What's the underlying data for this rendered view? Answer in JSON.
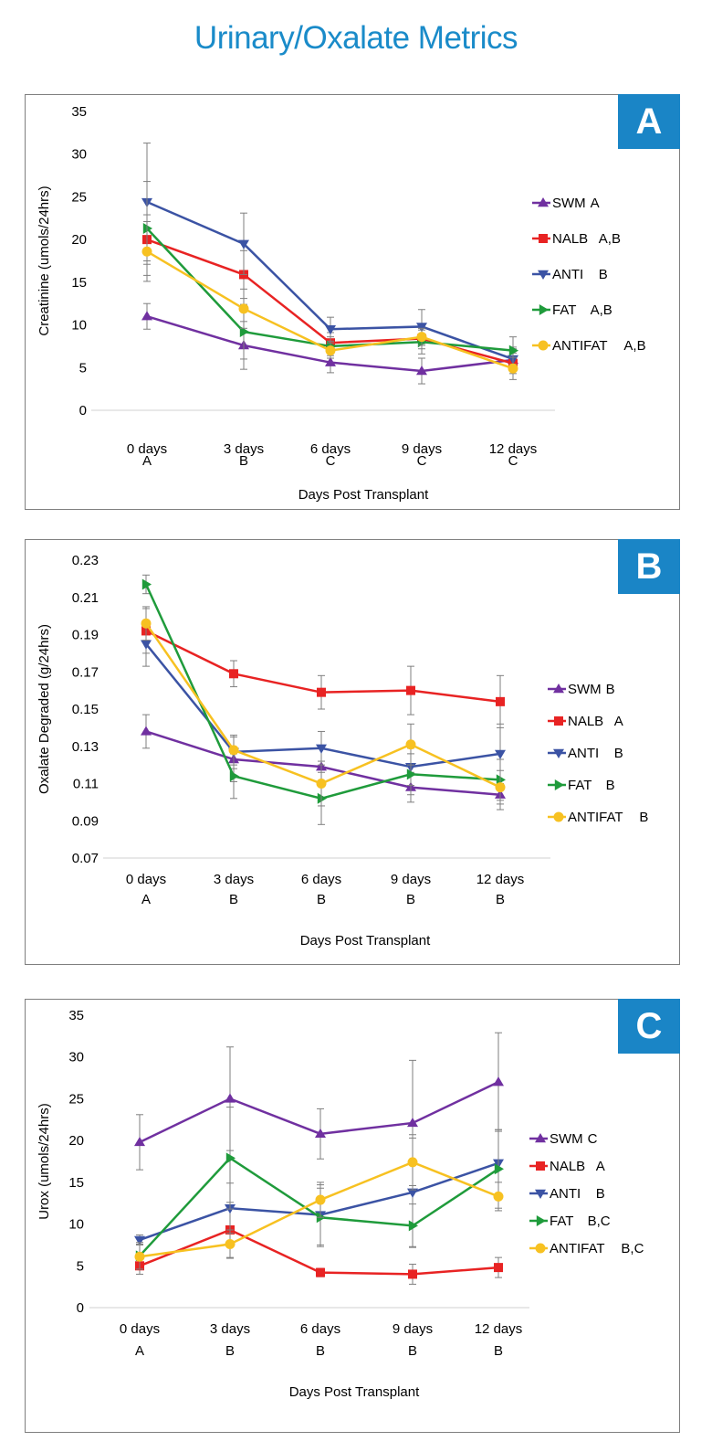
{
  "page": {
    "title": "Urinary/Oxalate Metrics"
  },
  "colors": {
    "title": "#1a8bc9",
    "badge": "#1a85c6",
    "SWM": "#7030a0",
    "NALB": "#e82323",
    "ANTI": "#3b53a4",
    "FAT": "#1f9b3b",
    "ANTIFAT": "#f7c121",
    "errorbar": "#7f7f7f"
  },
  "chart_data": [
    {
      "panel": "A",
      "type": "line",
      "categories": [
        "0 days",
        "3 days",
        "6 days",
        "9 days",
        "12 days"
      ],
      "category_groups": [
        "A",
        "B",
        "C",
        "C",
        "C"
      ],
      "xlabel": "Days Post Transplant",
      "ylabel": "Creatinine (umols/24hrs)",
      "ylim": [
        0,
        35
      ],
      "yticks": [
        "0",
        "5",
        "10",
        "15",
        "20",
        "25",
        "30",
        "35"
      ],
      "grid": false,
      "legend_position": "right",
      "series": [
        {
          "name": "SWM",
          "group": "A",
          "marker": "triangle-up",
          "values": [
            11,
            7.6,
            5.6,
            4.6,
            5.9
          ],
          "errors": [
            1.5,
            2.8,
            1.2,
            1.5,
            1.3
          ]
        },
        {
          "name": "NALB",
          "group": "A,B",
          "marker": "square",
          "values": [
            20,
            15.9,
            7.9,
            8.4,
            5.5
          ],
          "errors": [
            2.9,
            2.8,
            1.2,
            1.2,
            1.2
          ]
        },
        {
          "name": "ANTI",
          "group": "B",
          "marker": "triangle-down",
          "values": [
            24.4,
            19.5,
            9.5,
            9.8,
            6.0
          ],
          "errors": [
            6.9,
            3.6,
            1.4,
            2.0,
            1.4
          ]
        },
        {
          "name": "FAT",
          "group": "A,B",
          "marker": "triangle-right",
          "values": [
            21.3,
            9.2,
            7.5,
            8.0,
            7.0
          ],
          "errors": [
            5.5,
            3.2,
            1.1,
            1.4,
            1.6
          ]
        },
        {
          "name": "ANTIFAT",
          "group": "A,B",
          "marker": "circle",
          "values": [
            18.6,
            11.9,
            7.0,
            8.6,
            4.9
          ],
          "errors": [
            3.5,
            2.3,
            0.9,
            1.0,
            1.3
          ]
        }
      ]
    },
    {
      "panel": "B",
      "type": "line",
      "categories": [
        "0 days",
        "3 days",
        "6 days",
        "9 days",
        "12 days"
      ],
      "category_groups": [
        "A",
        "B",
        "B",
        "B",
        "B"
      ],
      "xlabel": "Days Post Transplant",
      "ylabel": "Oxalate Degraded (g/24hrs)",
      "ylim": [
        0.07,
        0.23
      ],
      "yticks": [
        "0.07",
        "0.09",
        "0.11",
        "0.13",
        "0.15",
        "0.17",
        "0.19",
        "0.21",
        "0.23"
      ],
      "grid": false,
      "legend_position": "right",
      "series": [
        {
          "name": "SWM",
          "group": "B",
          "marker": "triangle-up",
          "values": [
            0.138,
            0.123,
            0.119,
            0.108,
            0.104
          ],
          "errors": [
            0.009,
            0.012,
            0.01,
            0.008,
            0.008
          ]
        },
        {
          "name": "NALB",
          "group": "A",
          "marker": "square",
          "values": [
            0.192,
            0.169,
            0.159,
            0.16,
            0.154
          ],
          "errors": [
            0.012,
            0.007,
            0.009,
            0.013,
            0.014
          ]
        },
        {
          "name": "ANTI",
          "group": "B",
          "marker": "triangle-down",
          "values": [
            0.185,
            0.127,
            0.129,
            0.119,
            0.126
          ],
          "errors": [
            0.012,
            0.009,
            0.009,
            0.01,
            0.016
          ]
        },
        {
          "name": "FAT",
          "group": "B",
          "marker": "triangle-right",
          "values": [
            0.217,
            0.114,
            0.102,
            0.115,
            0.112
          ],
          "errors": [
            0.005,
            0.012,
            0.014,
            0.011,
            0.011
          ]
        },
        {
          "name": "ANTIFAT",
          "group": "B",
          "marker": "circle",
          "values": [
            0.196,
            0.128,
            0.11,
            0.131,
            0.108
          ],
          "errors": [
            0.009,
            0.008,
            0.012,
            0.011,
            0.009
          ]
        }
      ]
    },
    {
      "panel": "C",
      "type": "line",
      "categories": [
        "0 days",
        "3 days",
        "6 days",
        "9 days",
        "12 days"
      ],
      "category_groups": [
        "A",
        "B",
        "B",
        "B",
        "B"
      ],
      "xlabel": "Days Post Transplant",
      "ylabel": "Urox (umols/24hrs)",
      "ylim": [
        0,
        35
      ],
      "yticks": [
        "0",
        "5",
        "10",
        "15",
        "20",
        "25",
        "30",
        "35"
      ],
      "grid": false,
      "legend_position": "right",
      "series": [
        {
          "name": "SWM",
          "group": "C",
          "marker": "triangle-up",
          "values": [
            19.8,
            25.0,
            20.8,
            22.1,
            27.0
          ],
          "errors": [
            3.3,
            6.2,
            3.0,
            7.5,
            5.9
          ]
        },
        {
          "name": "NALB",
          "group": "A",
          "marker": "square",
          "values": [
            5.0,
            9.3,
            4.2,
            4.0,
            4.8
          ],
          "errors": [
            1.0,
            3.3,
            0.5,
            1.2,
            1.2
          ]
        },
        {
          "name": "ANTI",
          "group": "B",
          "marker": "triangle-down",
          "values": [
            8.1,
            11.9,
            11.1,
            13.8,
            17.3
          ],
          "errors": [
            0.6,
            3.0,
            3.6,
            6.5,
            4.0
          ]
        },
        {
          "name": "FAT",
          "group": "B,C",
          "marker": "triangle-right",
          "values": [
            6.2,
            17.9,
            10.8,
            9.8,
            16.6
          ],
          "errors": [
            1.6,
            6.1,
            3.5,
            2.6,
            4.7
          ]
        },
        {
          "name": "ANTIFAT",
          "group": "B,C",
          "marker": "circle",
          "values": [
            6.1,
            7.6,
            12.9,
            17.4,
            13.3
          ],
          "errors": [
            1.5,
            1.7,
            2.1,
            3.3,
            1.7
          ]
        }
      ]
    }
  ]
}
